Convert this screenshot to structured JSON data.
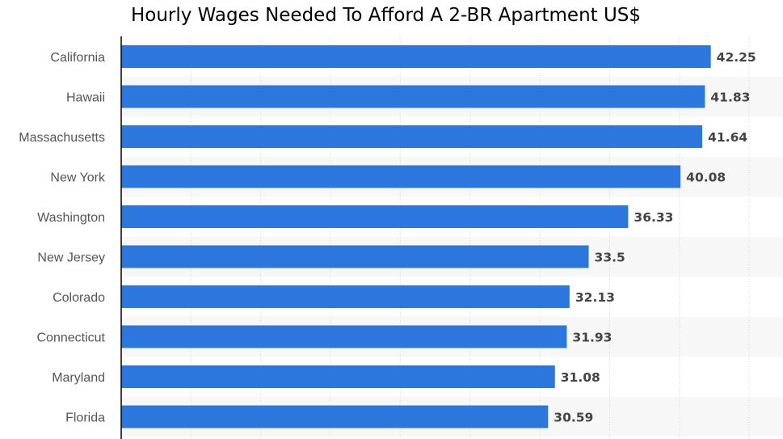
{
  "chart_data": {
    "type": "bar",
    "orientation": "horizontal",
    "title": "Hourly Wages Needed To Afford A 2-BR Apartment US$",
    "xlabel": "",
    "ylabel": "",
    "xlim": [
      0,
      47.5
    ],
    "grid": true,
    "categories": [
      "California",
      "Hawaii",
      "Massachusetts",
      "New York",
      "Washington",
      "New Jersey",
      "Colorado",
      "Connecticut",
      "Maryland",
      "Florida"
    ],
    "values": [
      42.25,
      41.83,
      41.64,
      40.08,
      36.33,
      33.5,
      32.13,
      31.93,
      31.08,
      30.59
    ],
    "value_labels": [
      "42.25",
      "41.83",
      "41.64",
      "40.08",
      "36.33",
      "33.5",
      "32.13",
      "31.93",
      "31.08",
      "30.59"
    ],
    "colors": {
      "bar": "#2b77dd",
      "band": "#f7f7f7",
      "grid": "#d8d8d8",
      "axis": "#000000"
    }
  }
}
